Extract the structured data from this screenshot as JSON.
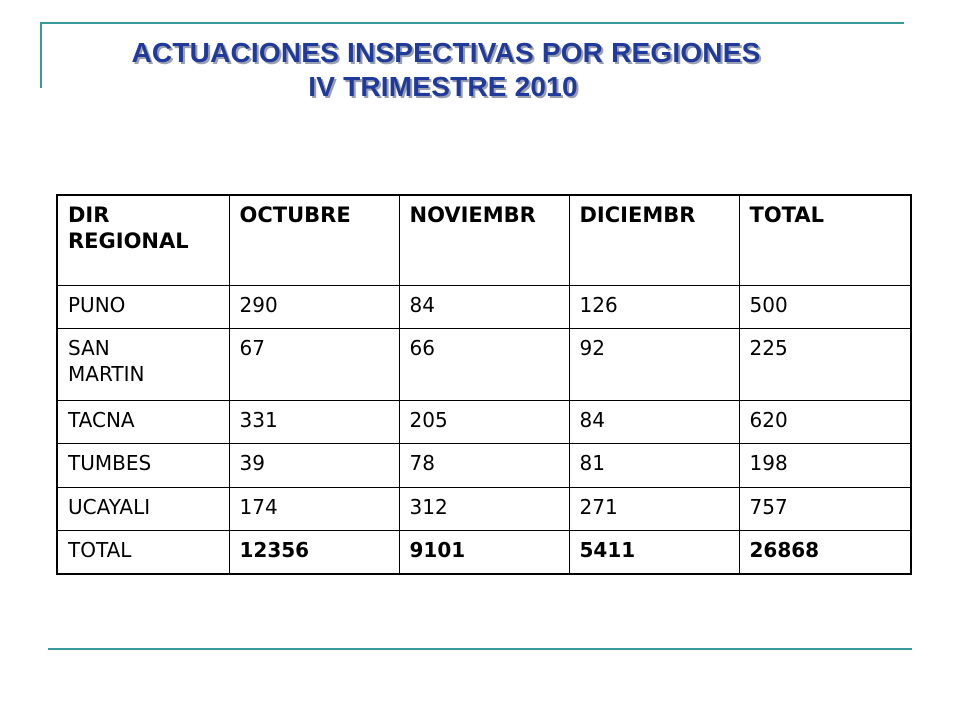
{
  "title": {
    "line1": "ACTUACIONES INSPECTIVAS POR REGIONES",
    "line2": "IV TRIMESTRE 2010"
  },
  "table": {
    "headers": [
      "DIR REGIONAL",
      "OCTUBRE",
      "NOVIEMBR",
      "DICIEMBR",
      "TOTAL"
    ],
    "rows": [
      [
        "PUNO",
        "290",
        "84",
        "126",
        "500"
      ],
      [
        "SAN MARTIN",
        "67",
        "66",
        "92",
        "225"
      ],
      [
        "TACNA",
        "331",
        "205",
        "84",
        "620"
      ],
      [
        "TUMBES",
        "39",
        "78",
        "81",
        "198"
      ],
      [
        "UCAYALI",
        "174",
        "312",
        "271",
        "757"
      ],
      [
        "TOTAL",
        "12356",
        "9101",
        "5411",
        "26868"
      ]
    ]
  },
  "colors": {
    "title": "#1f3a9a",
    "rule": "#3a9a9a"
  }
}
